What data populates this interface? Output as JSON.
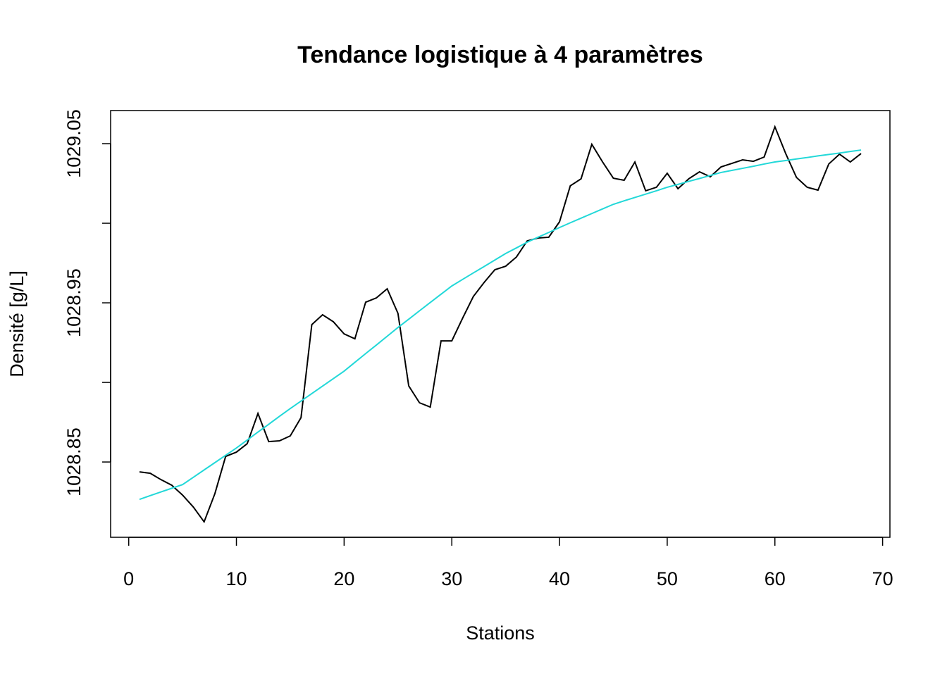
{
  "chart_data": {
    "type": "line",
    "title": "Tendance logistique à 4 paramètres",
    "xlabel": "Stations",
    "ylabel": "Densité [g/L]",
    "x": [
      1,
      2,
      3,
      4,
      5,
      6,
      7,
      8,
      9,
      10,
      11,
      12,
      13,
      14,
      15,
      16,
      17,
      18,
      19,
      20,
      21,
      22,
      23,
      24,
      25,
      26,
      27,
      28,
      29,
      30,
      31,
      32,
      33,
      34,
      35,
      36,
      37,
      38,
      39,
      40,
      41,
      42,
      43,
      44,
      45,
      46,
      47,
      48,
      49,
      50,
      51,
      52,
      53,
      54,
      55,
      56,
      57,
      58,
      59,
      60,
      61,
      62,
      63,
      64,
      65,
      66,
      67,
      68
    ],
    "series": [
      {
        "color": "#000000",
        "values": [
          1028.8438,
          1028.8429,
          1028.8389,
          1028.8354,
          1028.8292,
          1028.8217,
          1028.8124,
          1028.8301,
          1028.8535,
          1028.8562,
          1028.8615,
          1028.8805,
          1028.8628,
          1028.8633,
          1028.8664,
          1028.8779,
          1028.9363,
          1028.9425,
          1028.9381,
          1028.9305,
          1028.9274,
          1028.9504,
          1028.9531,
          1028.9588,
          1028.9434,
          1028.8978,
          1028.8872,
          1028.8845,
          1028.9261,
          1028.9261,
          1028.9403,
          1028.954,
          1028.9628,
          1028.9708,
          1028.973,
          1028.9788,
          1028.9889,
          1028.9907,
          1028.9912,
          1029.0009,
          1029.0235,
          1029.0279,
          1029.0496,
          1029.0385,
          1029.0283,
          1029.027,
          1029.0385,
          1029.0204,
          1029.0226,
          1029.0314,
          1029.0217,
          1029.0279,
          1029.0323,
          1029.0292,
          1029.0354,
          1029.0376,
          1029.0398,
          1029.0389,
          1029.0416,
          1029.0606,
          1029.0438,
          1029.0288,
          1029.0226,
          1029.0208,
          1029.0372,
          1029.0434,
          1029.0385,
          1029.0438
        ]
      },
      {
        "color": "#22d8d8",
        "values": [
          1028.8265,
          1028.8289,
          1028.8312,
          1028.8335,
          1028.8358,
          1028.8404,
          1028.845,
          1028.8496,
          1028.8542,
          1028.8588,
          1028.8638,
          1028.8688,
          1028.8737,
          1028.8787,
          1028.8836,
          1028.8883,
          1028.893,
          1028.8977,
          1028.9024,
          1028.9071,
          1028.9126,
          1028.9181,
          1028.9235,
          1028.929,
          1028.9345,
          1028.9397,
          1028.945,
          1028.9502,
          1028.9554,
          1028.9606,
          1028.9647,
          1028.9688,
          1028.9728,
          1028.9769,
          1028.981,
          1028.9845,
          1028.9881,
          1028.9912,
          1028.9942,
          1028.9973,
          1029.0003,
          1029.0032,
          1029.0061,
          1029.009,
          1029.0119,
          1029.0141,
          1029.0162,
          1029.0183,
          1029.0204,
          1029.0226,
          1029.0244,
          1029.0263,
          1029.0281,
          1029.03,
          1029.0319,
          1029.0332,
          1029.0345,
          1029.0358,
          1029.0372,
          1029.0385,
          1029.0394,
          1029.0404,
          1029.0413,
          1029.0423,
          1029.0432,
          1029.0441,
          1029.0451,
          1029.046
        ]
      }
    ],
    "xlim": [
      -1.68,
      70.68
    ],
    "xticks": [
      0,
      10,
      20,
      30,
      40,
      50,
      60,
      70
    ],
    "ylim": [
      1028.8027,
      1029.0708
    ],
    "yticks": [
      1028.85,
      1028.9,
      1028.95,
      1029,
      1029.05
    ],
    "ytick_label_step": 2
  }
}
